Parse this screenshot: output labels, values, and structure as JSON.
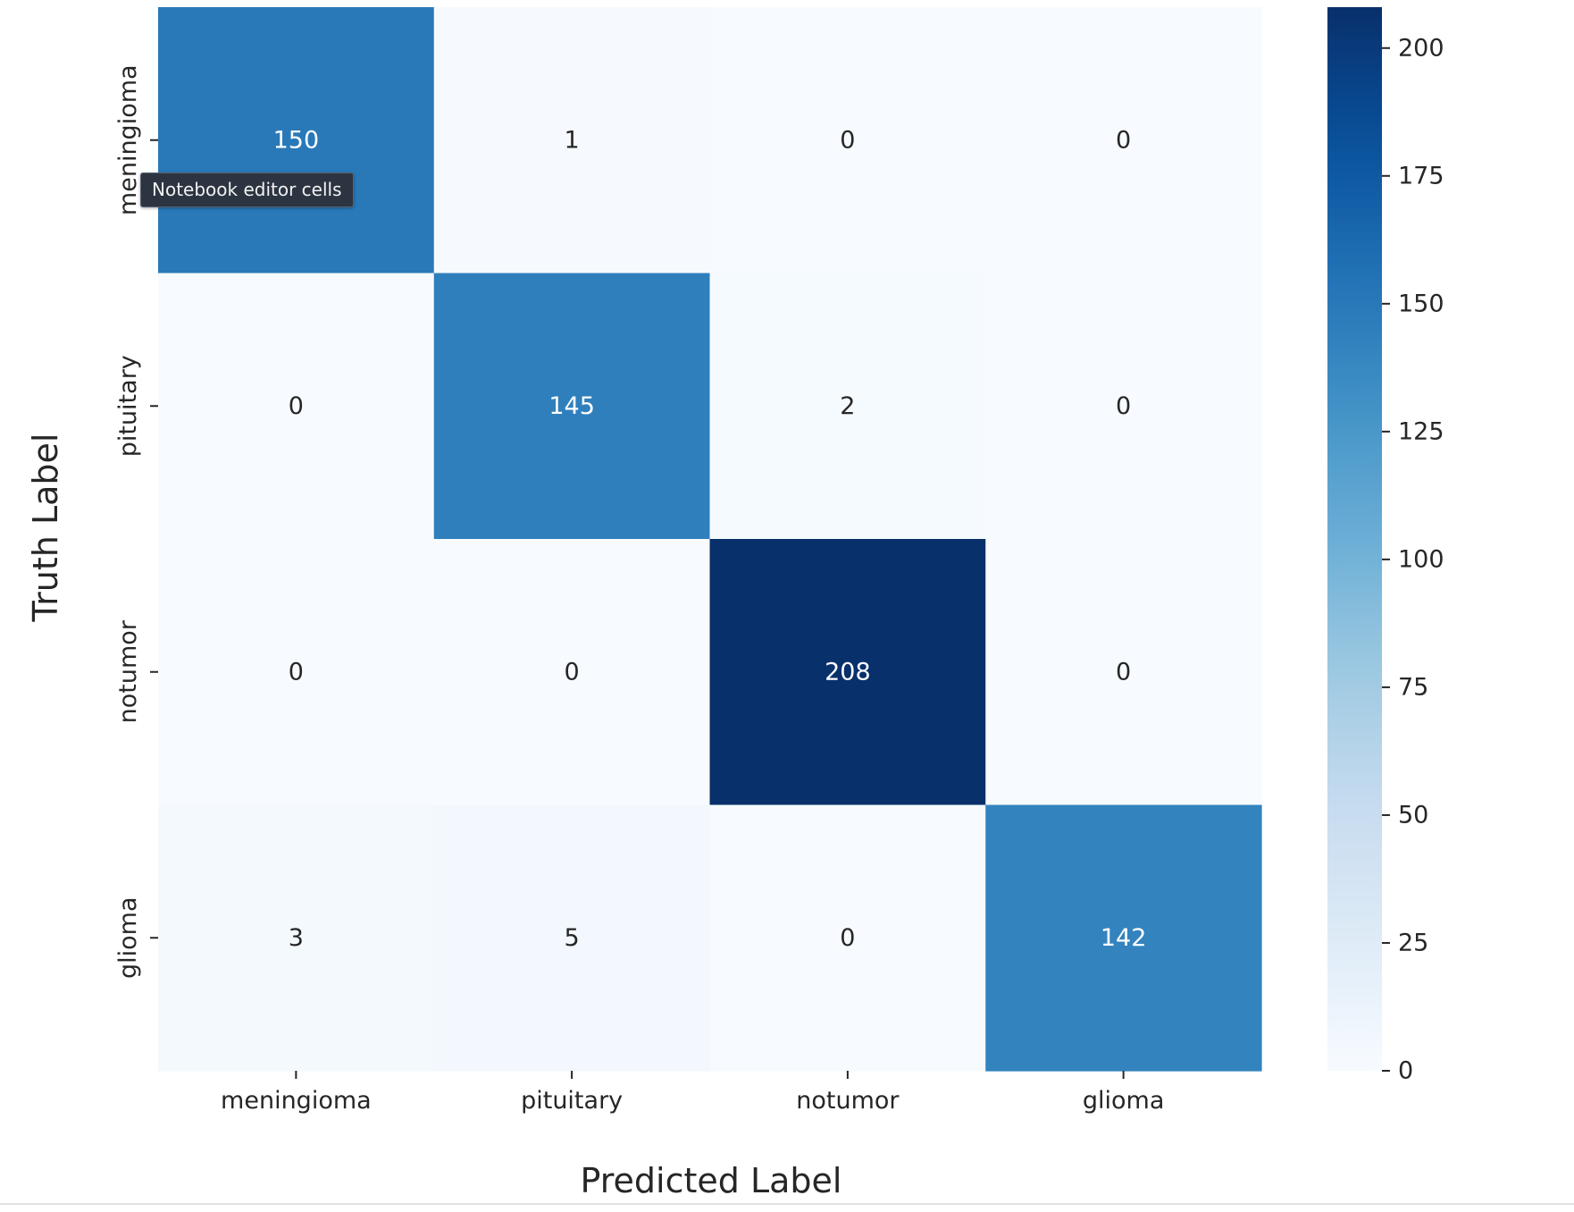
{
  "chart_data": {
    "type": "heatmap",
    "title": "",
    "xlabel": "Predicted Label",
    "ylabel": "Truth Label",
    "x_categories": [
      "meningioma",
      "pituitary",
      "notumor",
      "glioma"
    ],
    "y_categories": [
      "meningioma",
      "pituitary",
      "notumor",
      "glioma"
    ],
    "values": [
      [
        150,
        1,
        0,
        0
      ],
      [
        0,
        145,
        2,
        0
      ],
      [
        0,
        0,
        208,
        0
      ],
      [
        3,
        5,
        0,
        142
      ]
    ],
    "colorbar": {
      "colormap": "Blues",
      "range": [
        0,
        208
      ],
      "ticks": [
        0,
        25,
        50,
        75,
        100,
        125,
        150,
        175,
        200
      ]
    },
    "colors": {
      "low": "#f7fbff",
      "high": "#08306b",
      "text_dark": "#262626",
      "text_light": "#ffffff"
    }
  },
  "tooltip": {
    "text": "Notebook editor cells"
  }
}
